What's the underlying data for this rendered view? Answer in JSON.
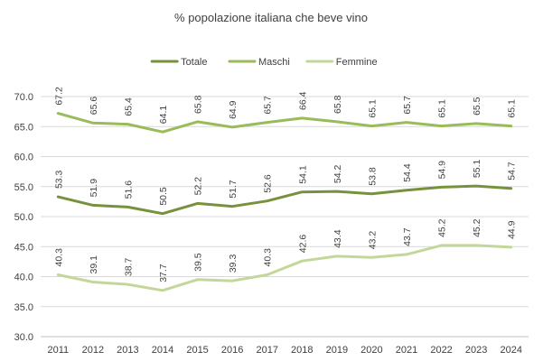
{
  "chart_data": {
    "type": "line",
    "title": "% popolazione italiana che beve vino",
    "xlabel": "",
    "ylabel": "",
    "categories": [
      "2011",
      "2012",
      "2013",
      "2014",
      "2015",
      "2016",
      "2017",
      "2018",
      "2019",
      "2020",
      "2021",
      "2022",
      "2023",
      "2024"
    ],
    "ylim": [
      30,
      70
    ],
    "yticks": [
      "30.0",
      "35.0",
      "40.0",
      "45.0",
      "50.0",
      "55.0",
      "60.0",
      "65.0",
      "70.0"
    ],
    "grid": true,
    "legend_position": "top-center",
    "series": [
      {
        "name": "Totale",
        "color": "#76923c",
        "values": [
          53.3,
          51.9,
          51.6,
          50.5,
          52.2,
          51.7,
          52.6,
          54.1,
          54.2,
          53.8,
          54.4,
          54.9,
          55.1,
          54.7
        ],
        "labels": [
          "53.3",
          "51.9",
          "51.6",
          "50.5",
          "52.2",
          "51.7",
          "52.6",
          "54.1",
          "54.2",
          "53.8",
          "54.4",
          "54.9",
          "55.1",
          "54.7"
        ]
      },
      {
        "name": "Maschi",
        "color": "#9bbb59",
        "values": [
          67.2,
          65.6,
          65.4,
          64.1,
          65.8,
          64.9,
          65.7,
          66.4,
          65.8,
          65.1,
          65.7,
          65.1,
          65.5,
          65.1
        ],
        "labels": [
          "67.2",
          "65.6",
          "65.4",
          "64.1",
          "65.8",
          "64.9",
          "65.7",
          "66.4",
          "65.8",
          "65.1",
          "65.7",
          "65.1",
          "65.5",
          "65.1"
        ]
      },
      {
        "name": "Femmine",
        "color": "#c4d79b",
        "values": [
          40.3,
          39.1,
          38.7,
          37.7,
          39.5,
          39.3,
          40.3,
          42.6,
          43.4,
          43.2,
          43.7,
          45.2,
          45.2,
          44.9
        ],
        "labels": [
          "40.3",
          "39.1",
          "38.7",
          "37.7",
          "39.5",
          "39.3",
          "40.3",
          "42.6",
          "43.4",
          "43.2",
          "43.7",
          "45.2",
          "45.2",
          "44.9"
        ]
      }
    ]
  }
}
